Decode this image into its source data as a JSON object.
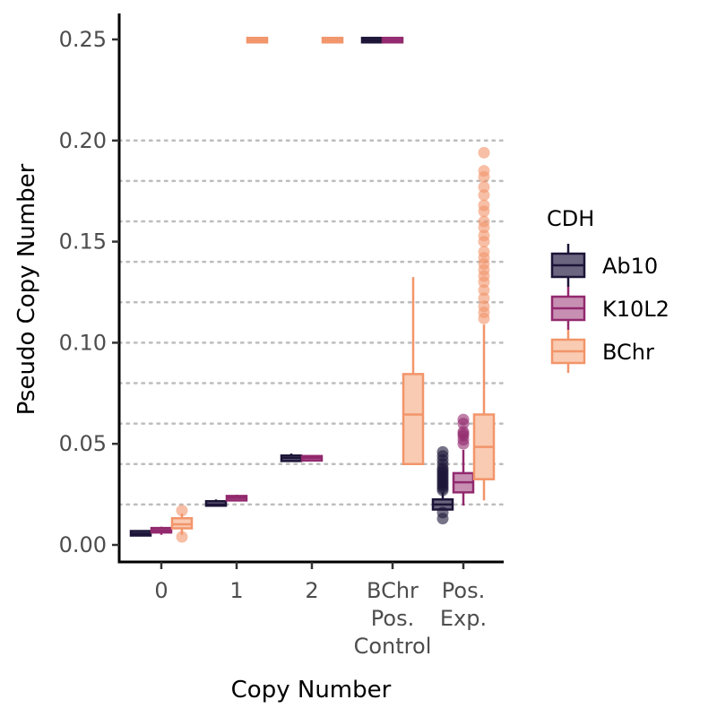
{
  "chart_data": {
    "type": "box",
    "xlabel": "Copy Number",
    "ylabel": "Pseudo Copy Number",
    "ylim": [
      -0.008,
      0.256
    ],
    "y_ticks": [
      "0.00",
      "0.05",
      "0.10",
      "0.15",
      "0.20",
      "0.25"
    ],
    "y_tick_values": [
      0,
      0.05,
      0.1,
      0.15,
      0.2,
      0.25
    ],
    "grid": "horizontal dotted lines at 0.02 intervals from 0.02 to 0.20",
    "gridlines": [
      0.02,
      0.04,
      0.06,
      0.08,
      0.1,
      0.12,
      0.14,
      0.16,
      0.18,
      0.2
    ],
    "categories": [
      {
        "key": "c0",
        "lines": [
          "0"
        ]
      },
      {
        "key": "c1",
        "lines": [
          "1"
        ]
      },
      {
        "key": "c2",
        "lines": [
          "2"
        ]
      },
      {
        "key": "bchr",
        "lines": [
          "BChr",
          "Pos.",
          "Control"
        ]
      },
      {
        "key": "pos",
        "lines": [
          "Pos.",
          "Exp."
        ]
      }
    ],
    "legend": {
      "title": "CDH",
      "position": "right",
      "entries": [
        "Ab10",
        "K10L2",
        "BChr"
      ]
    },
    "series": [
      {
        "name": "Ab10",
        "color": "#1c1537",
        "fill": "#6b6580",
        "boxes": [
          {
            "cat": 0,
            "min": 0.005,
            "q1": 0.0053,
            "median": 0.0056,
            "q3": 0.0062,
            "max": 0.0066,
            "outliers": []
          },
          {
            "cat": 1,
            "min": 0.019,
            "q1": 0.0195,
            "median": 0.02,
            "q3": 0.0215,
            "max": 0.0225,
            "outliers": []
          },
          {
            "cat": 2,
            "min": 0.041,
            "q1": 0.0415,
            "median": 0.043,
            "q3": 0.0442,
            "max": 0.0452,
            "outliers": []
          },
          {
            "cat": 3,
            "min": 0.249,
            "q1": 0.2493,
            "median": 0.2496,
            "q3": 0.25,
            "max": 0.2504,
            "outliers": []
          },
          {
            "cat": 4,
            "min": 0.017,
            "q1": 0.0175,
            "median": 0.02,
            "q3": 0.0225,
            "max": 0.026,
            "outliers": [
              0.013,
              0.016,
              0.027,
              0.028,
              0.029,
              0.03,
              0.031,
              0.032,
              0.033,
              0.034,
              0.035,
              0.036,
              0.037,
              0.038,
              0.04,
              0.042,
              0.044,
              0.046
            ]
          }
        ]
      },
      {
        "name": "K10L2",
        "color": "#92296e",
        "fill": "#c790b3",
        "boxes": [
          {
            "cat": 0,
            "min": 0.005,
            "q1": 0.0065,
            "median": 0.0072,
            "q3": 0.008,
            "max": 0.009,
            "outliers": []
          },
          {
            "cat": 1,
            "min": 0.022,
            "q1": 0.0222,
            "median": 0.0232,
            "q3": 0.024,
            "max": 0.0248,
            "outliers": []
          },
          {
            "cat": 2,
            "min": 0.0418,
            "q1": 0.042,
            "median": 0.043,
            "q3": 0.0437,
            "max": 0.044,
            "outliers": []
          },
          {
            "cat": 3,
            "min": 0.249,
            "q1": 0.2493,
            "median": 0.2496,
            "q3": 0.25,
            "max": 0.2504,
            "outliers": []
          },
          {
            "cat": 4,
            "min": 0.0195,
            "q1": 0.026,
            "median": 0.031,
            "q3": 0.0355,
            "max": 0.047,
            "outliers": [
              0.05,
              0.052,
              0.054,
              0.055,
              0.056,
              0.06,
              0.062
            ]
          }
        ]
      },
      {
        "name": "BChr",
        "color": "#f2956a",
        "fill": "#f9cbb2",
        "boxes": [
          {
            "cat": 0,
            "min": 0.005,
            "q1": 0.0082,
            "median": 0.0102,
            "q3": 0.0132,
            "max": 0.0155,
            "outliers": [
              0.004,
              0.017
            ]
          },
          {
            "cat": 1,
            "min": 0.249,
            "q1": 0.2493,
            "median": 0.2496,
            "q3": 0.25,
            "max": 0.2504,
            "outliers": []
          },
          {
            "cat": 2,
            "min": 0.249,
            "q1": 0.2493,
            "median": 0.2496,
            "q3": 0.25,
            "max": 0.2504,
            "outliers": []
          },
          {
            "cat": 3,
            "min": 0.04,
            "q1": 0.04,
            "median": 0.0645,
            "q3": 0.0845,
            "max": 0.1325,
            "outliers": []
          },
          {
            "cat": 4,
            "min": 0.022,
            "q1": 0.0325,
            "median": 0.0485,
            "q3": 0.0645,
            "max": 0.109,
            "outliers": [
              0.112,
              0.115,
              0.118,
              0.122,
              0.126,
              0.13,
              0.133,
              0.136,
              0.139,
              0.142,
              0.145,
              0.15,
              0.153,
              0.157,
              0.16,
              0.165,
              0.168,
              0.173,
              0.177,
              0.182,
              0.185,
              0.194
            ]
          }
        ]
      }
    ]
  }
}
